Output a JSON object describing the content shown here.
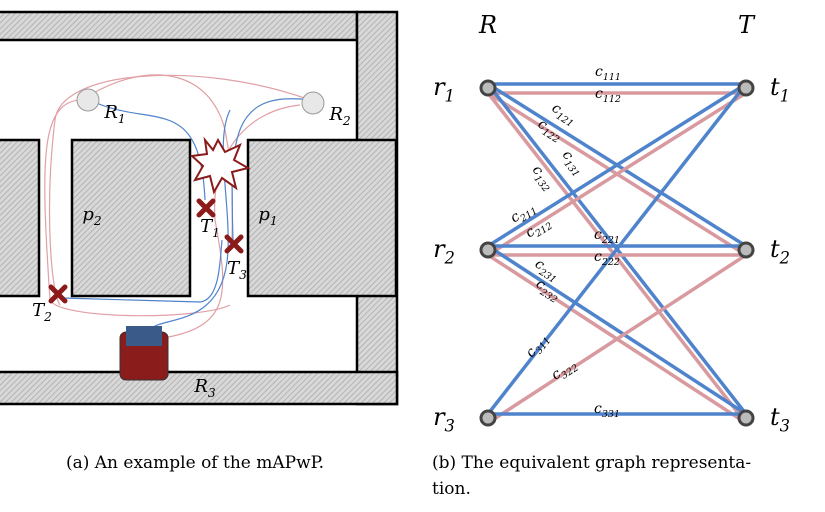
{
  "figure": {
    "panel_a": {
      "caption": "(a) An example of the mAPwP.",
      "robots": [
        {
          "text": "R",
          "sub": "1"
        },
        {
          "text": "R",
          "sub": "2"
        },
        {
          "text": "R",
          "sub": "3"
        }
      ],
      "tasks": [
        {
          "text": "T",
          "sub": "1"
        },
        {
          "text": "T",
          "sub": "2"
        },
        {
          "text": "T",
          "sub": "3"
        }
      ],
      "paths": [
        {
          "text": "p",
          "sub": "1"
        },
        {
          "text": "p",
          "sub": "2"
        }
      ]
    },
    "panel_b": {
      "caption_lines": [
        "(b) The equivalent graph representa-",
        "tion."
      ],
      "set_labels": [
        "R",
        "T"
      ],
      "robots": [
        {
          "text": "r",
          "sub": "1"
        },
        {
          "text": "r",
          "sub": "2"
        },
        {
          "text": "r",
          "sub": "3"
        }
      ],
      "tasks": [
        {
          "text": "t",
          "sub": "1"
        },
        {
          "text": "t",
          "sub": "2"
        },
        {
          "text": "t",
          "sub": "3"
        }
      ],
      "edges": [
        {
          "text": "c",
          "sub": "111"
        },
        {
          "text": "c",
          "sub": "112"
        },
        {
          "text": "c",
          "sub": "121"
        },
        {
          "text": "c",
          "sub": "122"
        },
        {
          "text": "c",
          "sub": "131"
        },
        {
          "text": "c",
          "sub": "132"
        },
        {
          "text": "c",
          "sub": "211"
        },
        {
          "text": "c",
          "sub": "212"
        },
        {
          "text": "c",
          "sub": "221"
        },
        {
          "text": "c",
          "sub": "222"
        },
        {
          "text": "c",
          "sub": "231"
        },
        {
          "text": "c",
          "sub": "232"
        },
        {
          "text": "c",
          "sub": "311"
        },
        {
          "text": "c",
          "sub": "322"
        },
        {
          "text": "c",
          "sub": "331"
        }
      ],
      "edge_colors": [
        "#4f84cc",
        "#d89a9f"
      ]
    }
  }
}
